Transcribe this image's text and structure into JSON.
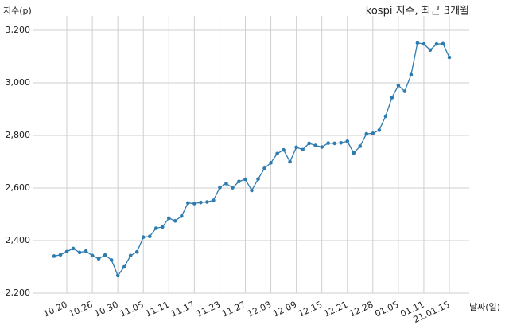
{
  "chart_data": {
    "type": "line",
    "title": "kospi 지수, 최근 3개월",
    "y_label": "지수(p)",
    "x_label": "날짜(일)",
    "categories": [
      null,
      null,
      "10.20",
      null,
      null,
      null,
      "10.26",
      null,
      null,
      null,
      "10.30",
      null,
      null,
      null,
      "11.05",
      null,
      null,
      null,
      "11.11",
      null,
      null,
      null,
      "11.17",
      null,
      null,
      null,
      "11.23",
      null,
      null,
      null,
      "11.27",
      null,
      null,
      null,
      "12.03",
      null,
      null,
      null,
      "12.09",
      null,
      null,
      null,
      "12.15",
      null,
      null,
      null,
      "12.21",
      null,
      null,
      null,
      "12.28",
      null,
      null,
      null,
      "01.05",
      null,
      null,
      null,
      "01.11",
      null,
      null,
      null,
      "21.01.15"
    ],
    "series": [
      {
        "name": "kospi",
        "color": "#2e7bb0",
        "values": [
          2341,
          2346,
          2358,
          2370,
          2355,
          2360,
          2343,
          2331,
          2345,
          2326,
          2267,
          2300,
          2343,
          2357,
          2413,
          2416,
          2447,
          2452,
          2485,
          2475,
          2493,
          2543,
          2541,
          2545,
          2547,
          2553,
          2602,
          2617,
          2601,
          2625,
          2633,
          2591,
          2634,
          2675,
          2696,
          2731,
          2745,
          2700,
          2755,
          2746,
          2770,
          2762,
          2756,
          2771,
          2770,
          2772,
          2778,
          2733,
          2759,
          2806,
          2808,
          2820,
          2873,
          2944,
          2990,
          2968,
          3031,
          3152,
          3148,
          3125,
          3148,
          3149,
          3097
        ]
      }
    ],
    "ylim": [
      2200,
      3200
    ],
    "yticks": [
      {
        "value": 2200,
        "label": "2,200"
      },
      {
        "value": 2400,
        "label": "2,400"
      },
      {
        "value": 2600,
        "label": "2,600"
      },
      {
        "value": 2800,
        "label": "2,800"
      },
      {
        "value": 3000,
        "label": "3,000"
      },
      {
        "value": 3200,
        "label": "3,200"
      }
    ],
    "grid": true
  }
}
